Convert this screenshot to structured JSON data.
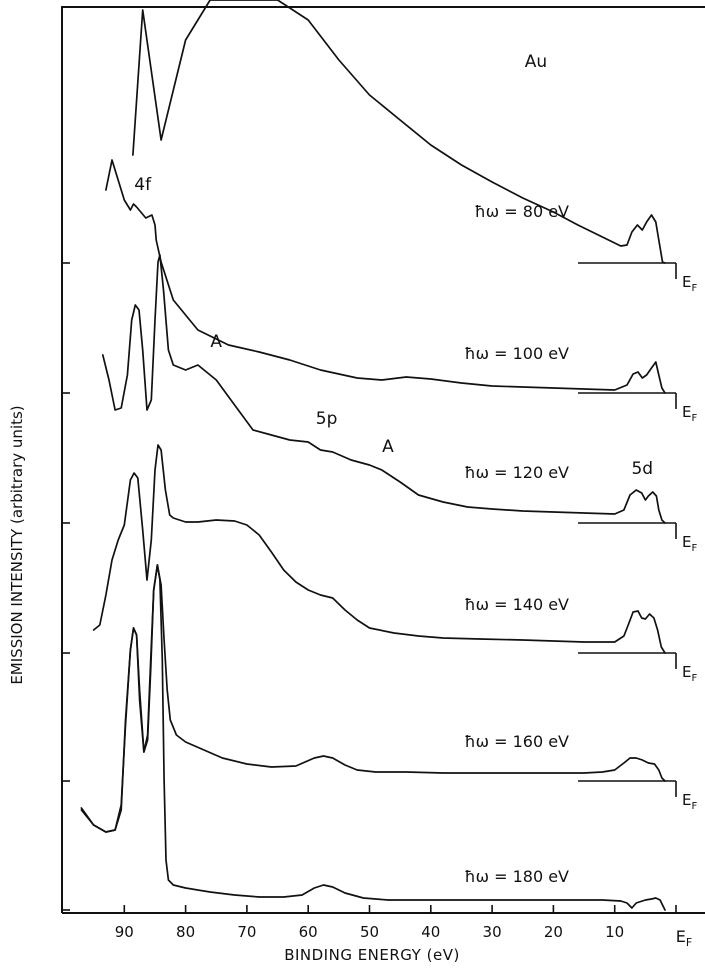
{
  "chart_data": {
    "type": "line",
    "title": "Au",
    "xlabel": "BINDING ENERGY (eV)",
    "ylabel": "EMISSION INTENSITY (arbitrary units)",
    "x_reversed": true,
    "xlim": [
      97,
      -5
    ],
    "ticks": [
      {
        "value": 90,
        "label": "90"
      },
      {
        "value": 80,
        "label": "80"
      },
      {
        "value": 70,
        "label": "70"
      },
      {
        "value": 60,
        "label": "60"
      },
      {
        "value": 50,
        "label": "50"
      },
      {
        "value": 40,
        "label": "40"
      },
      {
        "value": 30,
        "label": "30"
      },
      {
        "value": 20,
        "label": "20"
      },
      {
        "value": 10,
        "label": "10"
      },
      {
        "value": 0,
        "label": "E_F"
      }
    ],
    "ef_label": "E",
    "ef_sub": "F",
    "series": [
      {
        "name": "ħω = 80 eV",
        "photon_energy_ev": 80,
        "baseline": 263,
        "points": [
          [
            88.6,
            155
          ],
          [
            87,
            10
          ],
          [
            84,
            140
          ],
          [
            80,
            40
          ],
          [
            76,
            0
          ],
          [
            70,
            0
          ],
          [
            65,
            0
          ],
          [
            60,
            20
          ],
          [
            55,
            60
          ],
          [
            50,
            95
          ],
          [
            45,
            120
          ],
          [
            40,
            145
          ],
          [
            35,
            165
          ],
          [
            30,
            182
          ],
          [
            25,
            198
          ],
          [
            20,
            212
          ],
          [
            16,
            225
          ],
          [
            12,
            237
          ],
          [
            9,
            246
          ],
          [
            8,
            245
          ],
          [
            7.2,
            232
          ],
          [
            6.3,
            225
          ],
          [
            5.5,
            230
          ],
          [
            4.8,
            222
          ],
          [
            4,
            215
          ],
          [
            3.3,
            222
          ],
          [
            2.8,
            240
          ],
          [
            2.2,
            262
          ],
          [
            1.8,
            263
          ]
        ]
      },
      {
        "name": "ħω = 100 eV",
        "photon_energy_ev": 100,
        "baseline": 393,
        "points": [
          [
            93,
            190
          ],
          [
            92,
            160
          ],
          [
            90,
            200
          ],
          [
            89,
            210
          ],
          [
            88.5,
            204
          ],
          [
            88,
            207
          ],
          [
            86.5,
            218
          ],
          [
            85.5,
            215
          ],
          [
            85,
            225
          ],
          [
            84.8,
            240
          ],
          [
            84,
            262
          ],
          [
            82,
            300
          ],
          [
            78,
            330
          ],
          [
            73,
            345
          ],
          [
            68,
            352
          ],
          [
            63,
            360
          ],
          [
            58,
            370
          ],
          [
            52,
            378
          ],
          [
            48,
            380
          ],
          [
            44,
            377
          ],
          [
            40,
            379
          ],
          [
            35,
            383
          ],
          [
            30,
            386
          ],
          [
            25,
            387
          ],
          [
            20,
            388
          ],
          [
            15,
            389
          ],
          [
            10,
            390
          ],
          [
            8,
            385
          ],
          [
            7,
            374
          ],
          [
            6.2,
            372
          ],
          [
            5.5,
            378
          ],
          [
            4.8,
            375
          ],
          [
            4,
            368
          ],
          [
            3.3,
            362
          ],
          [
            2.8,
            375
          ],
          [
            2.3,
            388
          ],
          [
            1.8,
            393
          ]
        ]
      },
      {
        "name": "ħω = 120 eV",
        "photon_energy_ev": 120,
        "baseline": 523,
        "points": [
          [
            93.5,
            355
          ],
          [
            92.5,
            380
          ],
          [
            91.5,
            410
          ],
          [
            90.5,
            408
          ],
          [
            89.5,
            375
          ],
          [
            88.8,
            320
          ],
          [
            88.2,
            305
          ],
          [
            87.6,
            310
          ],
          [
            87,
            350
          ],
          [
            86.3,
            410
          ],
          [
            85.6,
            400
          ],
          [
            85,
            320
          ],
          [
            84.5,
            262
          ],
          [
            84.2,
            255
          ],
          [
            83.6,
            290
          ],
          [
            82.8,
            350
          ],
          [
            82,
            365
          ],
          [
            80,
            370
          ],
          [
            78,
            365
          ],
          [
            75,
            380
          ],
          [
            72,
            405
          ],
          [
            69,
            430
          ],
          [
            66,
            435
          ],
          [
            63,
            440
          ],
          [
            60,
            442
          ],
          [
            58,
            450
          ],
          [
            56,
            452
          ],
          [
            53,
            460
          ],
          [
            50,
            465
          ],
          [
            48,
            470
          ],
          [
            45,
            482
          ],
          [
            42,
            495
          ],
          [
            38,
            502
          ],
          [
            34,
            507
          ],
          [
            30,
            509
          ],
          [
            25,
            511
          ],
          [
            20,
            512
          ],
          [
            15,
            513
          ],
          [
            10,
            514
          ],
          [
            8.5,
            510
          ],
          [
            7.5,
            495
          ],
          [
            6.5,
            490
          ],
          [
            5.6,
            493
          ],
          [
            5,
            500
          ],
          [
            4.5,
            496
          ],
          [
            3.8,
            492
          ],
          [
            3.2,
            496
          ],
          [
            2.8,
            510
          ],
          [
            2.3,
            520
          ],
          [
            1.8,
            523
          ]
        ]
      },
      {
        "name": "ħω = 140 eV",
        "photon_energy_ev": 140,
        "baseline": 653,
        "points": [
          [
            95,
            630
          ],
          [
            94,
            625
          ],
          [
            93,
            595
          ],
          [
            92,
            560
          ],
          [
            91,
            540
          ],
          [
            90,
            525
          ],
          [
            89,
            480
          ],
          [
            88.4,
            473
          ],
          [
            87.8,
            478
          ],
          [
            87,
            530
          ],
          [
            86.3,
            580
          ],
          [
            85.6,
            540
          ],
          [
            85,
            470
          ],
          [
            84.5,
            445
          ],
          [
            84,
            450
          ],
          [
            83.3,
            490
          ],
          [
            82.6,
            515
          ],
          [
            82,
            518
          ],
          [
            80,
            522
          ],
          [
            78,
            522
          ],
          [
            75,
            520
          ],
          [
            72,
            521
          ],
          [
            70,
            525
          ],
          [
            68,
            535
          ],
          [
            66,
            552
          ],
          [
            64,
            570
          ],
          [
            62,
            582
          ],
          [
            60,
            590
          ],
          [
            58,
            595
          ],
          [
            56,
            598
          ],
          [
            54,
            610
          ],
          [
            52,
            620
          ],
          [
            50,
            628
          ],
          [
            46,
            633
          ],
          [
            42,
            636
          ],
          [
            38,
            638
          ],
          [
            32,
            639
          ],
          [
            25,
            640
          ],
          [
            20,
            641
          ],
          [
            15,
            642
          ],
          [
            10,
            642
          ],
          [
            8.5,
            636
          ],
          [
            7.8,
            625
          ],
          [
            7,
            612
          ],
          [
            6.2,
            611
          ],
          [
            5.6,
            618
          ],
          [
            5,
            619
          ],
          [
            4.3,
            614
          ],
          [
            3.6,
            618
          ],
          [
            3,
            630
          ],
          [
            2.4,
            647
          ],
          [
            1.8,
            653
          ]
        ]
      },
      {
        "name": "ħω = 160 eV",
        "photon_energy_ev": 160,
        "baseline": 781,
        "points": [
          [
            97,
            810
          ],
          [
            95,
            825
          ],
          [
            93,
            832
          ],
          [
            91.5,
            830
          ],
          [
            90.5,
            810
          ],
          [
            89.8,
            720
          ],
          [
            89,
            650
          ],
          [
            88.5,
            628
          ],
          [
            88,
            635
          ],
          [
            87.5,
            690
          ],
          [
            86.8,
            752
          ],
          [
            86.2,
            735
          ],
          [
            85.7,
            660
          ],
          [
            85.2,
            590
          ],
          [
            84.6,
            565
          ],
          [
            84,
            585
          ],
          [
            83.5,
            640
          ],
          [
            83,
            690
          ],
          [
            82.5,
            720
          ],
          [
            81.5,
            735
          ],
          [
            80,
            742
          ],
          [
            77,
            750
          ],
          [
            74,
            758
          ],
          [
            70,
            764
          ],
          [
            66,
            767
          ],
          [
            62,
            766
          ],
          [
            59,
            758
          ],
          [
            57.5,
            756
          ],
          [
            56,
            758
          ],
          [
            54,
            765
          ],
          [
            52,
            770
          ],
          [
            49,
            772
          ],
          [
            44,
            772
          ],
          [
            38,
            773
          ],
          [
            30,
            773
          ],
          [
            20,
            773
          ],
          [
            15,
            773
          ],
          [
            12,
            772
          ],
          [
            10,
            770
          ],
          [
            8.5,
            763
          ],
          [
            7.5,
            758
          ],
          [
            6.5,
            758
          ],
          [
            5.5,
            760
          ],
          [
            4.5,
            763
          ],
          [
            3.5,
            764
          ],
          [
            2.8,
            770
          ],
          [
            2.3,
            778
          ],
          [
            1.8,
            781
          ]
        ]
      },
      {
        "name": "ħω = 180 eV",
        "photon_energy_ev": 180,
        "baseline": 910,
        "points": [
          [
            97,
            808
          ],
          [
            95,
            825
          ],
          [
            93,
            832
          ],
          [
            91.5,
            830
          ],
          [
            90.5,
            805
          ],
          [
            89.8,
            725
          ],
          [
            89,
            650
          ],
          [
            88.5,
            628
          ],
          [
            88,
            635
          ],
          [
            87.5,
            700
          ],
          [
            86.8,
            752
          ],
          [
            86.2,
            740
          ],
          [
            85.7,
            670
          ],
          [
            85.2,
            590
          ],
          [
            84.6,
            565
          ],
          [
            84.2,
            580
          ],
          [
            83.8,
            660
          ],
          [
            83.5,
            780
          ],
          [
            83.2,
            860
          ],
          [
            82.8,
            880
          ],
          [
            82,
            885
          ],
          [
            80,
            888
          ],
          [
            76,
            892
          ],
          [
            72,
            895
          ],
          [
            68,
            897
          ],
          [
            64,
            897
          ],
          [
            61,
            895
          ],
          [
            59,
            888
          ],
          [
            57.5,
            885
          ],
          [
            56,
            887
          ],
          [
            54,
            893
          ],
          [
            51,
            898
          ],
          [
            47,
            900
          ],
          [
            40,
            900
          ],
          [
            30,
            900
          ],
          [
            20,
            900
          ],
          [
            12,
            900
          ],
          [
            9,
            901
          ],
          [
            8,
            903
          ],
          [
            7.2,
            908
          ],
          [
            6.5,
            903
          ],
          [
            5,
            900
          ],
          [
            4,
            899
          ],
          [
            3.3,
            898
          ],
          [
            2.6,
            900
          ],
          [
            2.2,
            905
          ],
          [
            1.8,
            910
          ]
        ]
      }
    ],
    "annotations": [
      {
        "text": "4f",
        "x": 87,
        "y": 190
      },
      {
        "text": "A",
        "x": 75,
        "y": 347
      },
      {
        "text": "5p",
        "x": 57,
        "y": 424
      },
      {
        "text": "A",
        "x": 47,
        "y": 452
      },
      {
        "text": "5d",
        "x": 5.5,
        "y": 474
      }
    ]
  }
}
